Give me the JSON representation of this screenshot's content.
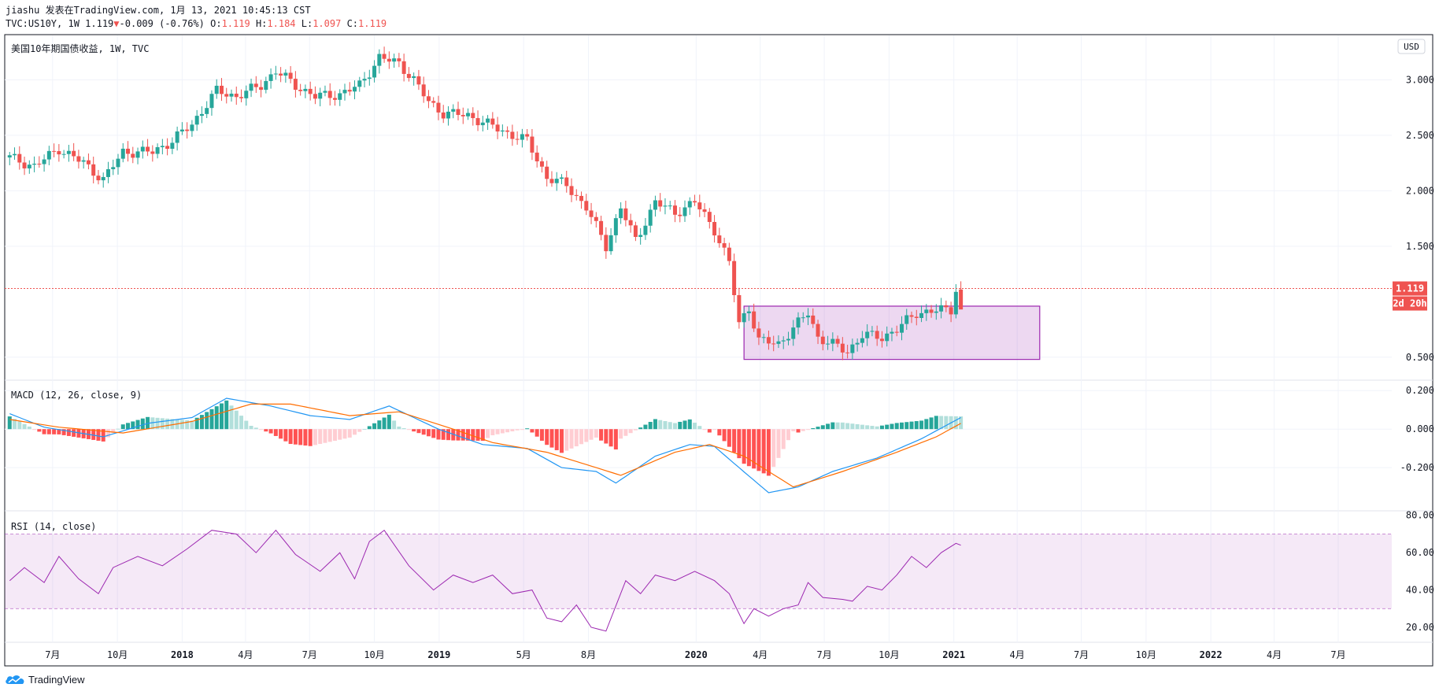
{
  "header": {
    "line1": "jiashu 发表在TradingView.com, 1月 13, 2021 10:45:13 CST",
    "symbol": "TVC:US10Y, 1W 1.119",
    "change": "-0.009 (-0.76%)",
    "o_label": "O:",
    "o": "1.119",
    "h_label": "H:",
    "h": "1.184",
    "l_label": "L:",
    "l": "1.097",
    "c_label": "C:",
    "c": "1.119",
    "down_arrow": "▼"
  },
  "footer": {
    "brand": "TradingView",
    "icon": "tradingview-cloud-logo-icon"
  },
  "colors": {
    "up": "#26a69a",
    "down": "#ef5350",
    "macd": "#2196f3",
    "signal": "#ff6d00",
    "rsi": "#9c27b0",
    "box": "#9c27b0",
    "grid": "#f0f3fa"
  },
  "chart_data": [
    {
      "type": "candlestick",
      "title": "美国10年期国债收益, 1W, TVC",
      "currency": "USD",
      "y_ticks": [
        "3.000",
        "2.500",
        "2.000",
        "1.500",
        "0.500"
      ],
      "ylim": [
        0.3,
        3.4
      ],
      "last_price": "1.119",
      "countdown": "2d 20h",
      "x_ticks": [
        "7月",
        "10月",
        "2018",
        "4月",
        "7月",
        "10月",
        "2019",
        "5月",
        "8月",
        "2020",
        "4月",
        "7月",
        "10月",
        "2021",
        "4月",
        "7月",
        "10月",
        "2022",
        "4月",
        "7月"
      ],
      "x_tick_dates": [
        "2017-07-01",
        "2017-10-01",
        "2018-01-01",
        "2018-04-01",
        "2018-07-01",
        "2018-10-01",
        "2019-01-01",
        "2019-05-01",
        "2019-08-01",
        "2020-01-01",
        "2020-04-01",
        "2020-07-01",
        "2020-10-01",
        "2021-01-01",
        "2021-04-01",
        "2021-07-01",
        "2021-10-01",
        "2022-01-01",
        "2022-04-01",
        "2022-07-01"
      ],
      "x_range": [
        "2017-04-24",
        "2022-09-15"
      ],
      "close_keypoints": [
        [
          "2017-05-01",
          2.3
        ],
        [
          "2017-06-05",
          2.22
        ],
        [
          "2017-07-10",
          2.38
        ],
        [
          "2017-08-14",
          2.25
        ],
        [
          "2017-09-11",
          2.1
        ],
        [
          "2017-10-09",
          2.35
        ],
        [
          "2017-11-20",
          2.35
        ],
        [
          "2017-12-18",
          2.45
        ],
        [
          "2018-01-15",
          2.6
        ],
        [
          "2018-02-19",
          2.9
        ],
        [
          "2018-03-19",
          2.85
        ],
        [
          "2018-04-23",
          2.95
        ],
        [
          "2018-05-14",
          3.08
        ],
        [
          "2018-06-11",
          2.95
        ],
        [
          "2018-07-09",
          2.85
        ],
        [
          "2018-08-13",
          2.87
        ],
        [
          "2018-09-10",
          2.95
        ],
        [
          "2018-10-08",
          3.2
        ],
        [
          "2018-11-05",
          3.15
        ],
        [
          "2018-11-26",
          3.0
        ],
        [
          "2018-12-17",
          2.8
        ],
        [
          "2019-01-07",
          2.7
        ],
        [
          "2019-02-11",
          2.68
        ],
        [
          "2019-03-11",
          2.6
        ],
        [
          "2019-04-08",
          2.52
        ],
        [
          "2019-05-06",
          2.45
        ],
        [
          "2019-06-03",
          2.12
        ],
        [
          "2019-07-01",
          2.05
        ],
        [
          "2019-07-29",
          1.85
        ],
        [
          "2019-08-26",
          1.5
        ],
        [
          "2019-09-16",
          1.85
        ],
        [
          "2019-10-07",
          1.55
        ],
        [
          "2019-11-04",
          1.9
        ],
        [
          "2019-12-02",
          1.8
        ],
        [
          "2019-12-30",
          1.9
        ],
        [
          "2020-01-27",
          1.65
        ],
        [
          "2020-02-17",
          1.35
        ],
        [
          "2020-03-02",
          0.8
        ],
        [
          "2020-03-16",
          0.95
        ],
        [
          "2020-03-30",
          0.65
        ],
        [
          "2020-04-27",
          0.62
        ],
        [
          "2020-06-08",
          0.9
        ],
        [
          "2020-06-22",
          0.68
        ],
        [
          "2020-08-03",
          0.55
        ],
        [
          "2020-08-24",
          0.7
        ],
        [
          "2020-09-21",
          0.68
        ],
        [
          "2020-10-12",
          0.75
        ],
        [
          "2020-11-09",
          0.9
        ],
        [
          "2020-12-07",
          0.92
        ],
        [
          "2020-12-28",
          0.93
        ],
        [
          "2021-01-04",
          1.12
        ]
      ],
      "latest_candle": {
        "date": "2021-01-11",
        "o": 1.119,
        "h": 1.184,
        "l": 1.097,
        "c": 1.119
      },
      "annotations": [
        {
          "type": "rectangle",
          "from_date": "2020-03-09",
          "to_date": "2021-05-03",
          "price_low": 0.48,
          "price_high": 0.96
        }
      ]
    },
    {
      "type": "line",
      "title": "MACD (12, 26, close, 9)",
      "y_ticks": [
        "0.200",
        "0.000",
        "-0.200"
      ],
      "ylim": [
        -0.42,
        0.25
      ],
      "series": [
        {
          "id": "macd",
          "keypoints": [
            [
              "2017-05-01",
              0.08
            ],
            [
              "2017-06-19",
              0.01
            ],
            [
              "2017-09-11",
              -0.04
            ],
            [
              "2017-11-13",
              0.03
            ],
            [
              "2018-01-15",
              0.06
            ],
            [
              "2018-03-05",
              0.16
            ],
            [
              "2018-05-07",
              0.12
            ],
            [
              "2018-07-02",
              0.07
            ],
            [
              "2018-08-27",
              0.05
            ],
            [
              "2018-10-22",
              0.12
            ],
            [
              "2018-12-31",
              0.0
            ],
            [
              "2019-03-04",
              -0.08
            ],
            [
              "2019-05-06",
              -0.1
            ],
            [
              "2019-06-24",
              -0.2
            ],
            [
              "2019-08-12",
              -0.22
            ],
            [
              "2019-09-09",
              -0.28
            ],
            [
              "2019-11-04",
              -0.14
            ],
            [
              "2019-12-23",
              -0.08
            ],
            [
              "2020-01-27",
              -0.09
            ],
            [
              "2020-03-02",
              -0.2
            ],
            [
              "2020-04-13",
              -0.33
            ],
            [
              "2020-05-25",
              -0.3
            ],
            [
              "2020-07-13",
              -0.22
            ],
            [
              "2020-09-14",
              -0.15
            ],
            [
              "2020-11-16",
              -0.05
            ],
            [
              "2021-01-11",
              0.06
            ]
          ]
        },
        {
          "id": "signal",
          "keypoints": [
            [
              "2017-05-01",
              0.05
            ],
            [
              "2017-07-10",
              0.01
            ],
            [
              "2017-10-09",
              -0.02
            ],
            [
              "2018-01-15",
              0.04
            ],
            [
              "2018-04-09",
              0.13
            ],
            [
              "2018-06-04",
              0.13
            ],
            [
              "2018-08-27",
              0.07
            ],
            [
              "2018-11-05",
              0.09
            ],
            [
              "2019-01-21",
              0.0
            ],
            [
              "2019-03-18",
              -0.07
            ],
            [
              "2019-06-03",
              -0.12
            ],
            [
              "2019-09-16",
              -0.24
            ],
            [
              "2019-12-02",
              -0.12
            ],
            [
              "2020-01-20",
              -0.08
            ],
            [
              "2020-03-09",
              -0.14
            ],
            [
              "2020-05-18",
              -0.3
            ],
            [
              "2020-07-27",
              -0.22
            ],
            [
              "2020-10-12",
              -0.12
            ],
            [
              "2020-12-07",
              -0.04
            ],
            [
              "2021-01-11",
              0.03
            ]
          ]
        }
      ],
      "histogram": "macd - signal"
    },
    {
      "type": "line",
      "title": "RSI (14, close)",
      "y_ticks": [
        "80.00",
        "60.00",
        "40.00",
        "20.00"
      ],
      "ylim": [
        12,
        82
      ],
      "band": [
        30,
        70
      ],
      "keypoints": [
        [
          "2017-05-01",
          45
        ],
        [
          "2017-05-22",
          52
        ],
        [
          "2017-06-19",
          44
        ],
        [
          "2017-07-10",
          58
        ],
        [
          "2017-08-07",
          46
        ],
        [
          "2017-09-04",
          38
        ],
        [
          "2017-09-25",
          52
        ],
        [
          "2017-10-30",
          58
        ],
        [
          "2017-12-04",
          53
        ],
        [
          "2018-01-08",
          62
        ],
        [
          "2018-02-12",
          72
        ],
        [
          "2018-03-19",
          70
        ],
        [
          "2018-04-16",
          60
        ],
        [
          "2018-05-14",
          72
        ],
        [
          "2018-06-11",
          59
        ],
        [
          "2018-07-16",
          50
        ],
        [
          "2018-08-13",
          60
        ],
        [
          "2018-09-03",
          46
        ],
        [
          "2018-09-24",
          66
        ],
        [
          "2018-10-15",
          72
        ],
        [
          "2018-11-19",
          53
        ],
        [
          "2018-12-24",
          40
        ],
        [
          "2019-01-21",
          48
        ],
        [
          "2019-02-18",
          44
        ],
        [
          "2019-03-18",
          48
        ],
        [
          "2019-04-15",
          38
        ],
        [
          "2019-05-13",
          40
        ],
        [
          "2019-06-03",
          25
        ],
        [
          "2019-06-24",
          23
        ],
        [
          "2019-07-15",
          32
        ],
        [
          "2019-08-05",
          20
        ],
        [
          "2019-08-26",
          18
        ],
        [
          "2019-09-23",
          45
        ],
        [
          "2019-10-14",
          38
        ],
        [
          "2019-11-04",
          48
        ],
        [
          "2019-12-02",
          45
        ],
        [
          "2019-12-30",
          50
        ],
        [
          "2020-01-27",
          45
        ],
        [
          "2020-02-17",
          38
        ],
        [
          "2020-03-09",
          22
        ],
        [
          "2020-03-23",
          30
        ],
        [
          "2020-04-13",
          26
        ],
        [
          "2020-05-04",
          30
        ],
        [
          "2020-05-25",
          32
        ],
        [
          "2020-06-08",
          44
        ],
        [
          "2020-06-29",
          36
        ],
        [
          "2020-07-27",
          35
        ],
        [
          "2020-08-10",
          34
        ],
        [
          "2020-08-31",
          42
        ],
        [
          "2020-09-21",
          40
        ],
        [
          "2020-10-12",
          48
        ],
        [
          "2020-11-02",
          58
        ],
        [
          "2020-11-23",
          52
        ],
        [
          "2020-12-14",
          60
        ],
        [
          "2021-01-04",
          65
        ],
        [
          "2021-01-11",
          64
        ]
      ]
    }
  ]
}
